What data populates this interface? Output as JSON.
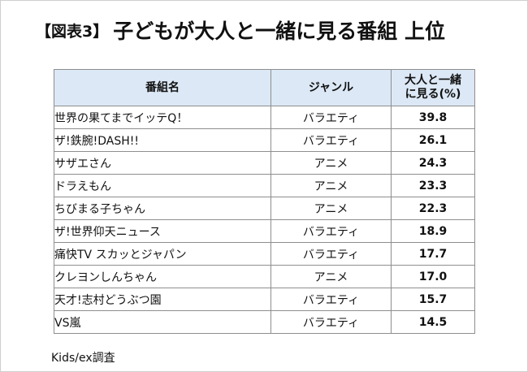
{
  "title": {
    "tag": "【図表3】",
    "text": "子どもが大人と一緒に見る番組 上位"
  },
  "chart_data": {
    "type": "table",
    "columns": [
      "番組名",
      "ジャンル",
      "大人と一緒\nに見る(%)"
    ],
    "rows": [
      {
        "name": "世界の果てまでイッテQ！",
        "genre": "バラエティ",
        "value": "39.8"
      },
      {
        "name": "ザ!鉄腕!DASH!!",
        "genre": "バラエティ",
        "value": "26.1"
      },
      {
        "name": "サザエさん",
        "genre": "アニメ",
        "value": "24.3"
      },
      {
        "name": "ドラえもん",
        "genre": "アニメ",
        "value": "23.3"
      },
      {
        "name": "ちびまる子ちゃん",
        "genre": "アニメ",
        "value": "22.3"
      },
      {
        "name": "ザ!世界仰天ニュース",
        "genre": "バラエティ",
        "value": "18.9"
      },
      {
        "name": "痛快TV スカッとジャパン",
        "genre": "バラエティ",
        "value": "17.7"
      },
      {
        "name": "クレヨンしんちゃん",
        "genre": "アニメ",
        "value": "17.0"
      },
      {
        "name": "天才!志村どうぶつ園",
        "genre": "バラエティ",
        "value": "15.7"
      },
      {
        "name": "VS嵐",
        "genre": "バラエティ",
        "value": "14.5"
      }
    ],
    "header_color": "#dce8f5",
    "border_color": "#8e8e8e"
  },
  "source": "Kids/ex調査"
}
